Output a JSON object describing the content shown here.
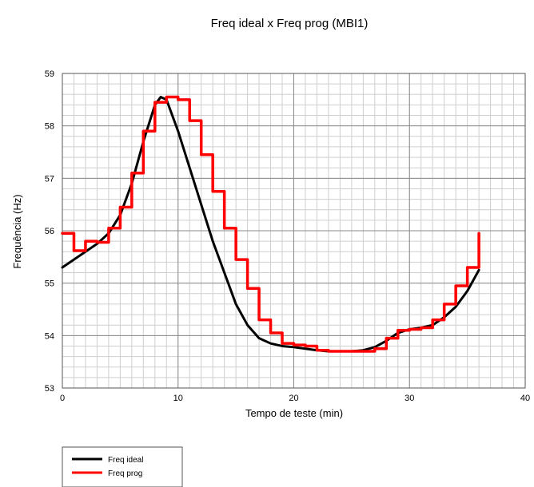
{
  "chart_data": {
    "type": "line",
    "title": "Freq ideal x Freq prog (MBI1)",
    "xlabel": "Tempo de teste (min)",
    "ylabel": "Frequência (Hz)",
    "xlim": [
      0,
      40
    ],
    "ylim": [
      53,
      59
    ],
    "xticks": [
      0,
      10,
      20,
      30,
      40
    ],
    "yticks": [
      53,
      54,
      55,
      56,
      57,
      58,
      59
    ],
    "ytick_labels": [
      "53",
      "54",
      "55",
      "56",
      "57",
      "58",
      "59"
    ],
    "x_minor_step": 1,
    "y_minor_step": 0.2,
    "grid": true,
    "legend_position": "bottom-left",
    "series": [
      {
        "name": "Freq ideal",
        "color": "#000000",
        "x": [
          0,
          1,
          2,
          3,
          4,
          5,
          6,
          7,
          8,
          8.5,
          9,
          10,
          11,
          12,
          13,
          14,
          15,
          16,
          17,
          18,
          19,
          20,
          21,
          22,
          23,
          24,
          25,
          26,
          27,
          28,
          29,
          30,
          31,
          32,
          33,
          34,
          35,
          36
        ],
        "y": [
          55.3,
          55.45,
          55.6,
          55.75,
          55.95,
          56.3,
          56.9,
          57.7,
          58.4,
          58.55,
          58.5,
          57.9,
          57.2,
          56.5,
          55.8,
          55.2,
          54.6,
          54.2,
          53.95,
          53.85,
          53.8,
          53.78,
          53.75,
          53.72,
          53.7,
          53.7,
          53.7,
          53.72,
          53.78,
          53.9,
          54.05,
          54.12,
          54.15,
          54.2,
          54.35,
          54.55,
          54.85,
          55.25
        ]
      },
      {
        "name": "Freq prog",
        "color": "#ff0000",
        "x": [
          0,
          1,
          1,
          2,
          2,
          3,
          3,
          4,
          4,
          5,
          5,
          6,
          6,
          7,
          7,
          8,
          8,
          9,
          9,
          10,
          10,
          11,
          11,
          12,
          12,
          13,
          13,
          14,
          14,
          15,
          15,
          16,
          16,
          17,
          17,
          18,
          18,
          19,
          19,
          20,
          20,
          21,
          21,
          22,
          22,
          23,
          23,
          24,
          24,
          25,
          25,
          26,
          26,
          27,
          27,
          28,
          28,
          29,
          29,
          30,
          30,
          31,
          31,
          32,
          32,
          33,
          33,
          34,
          34,
          35,
          35,
          36,
          36
        ],
        "y": [
          55.95,
          55.95,
          55.62,
          55.62,
          55.8,
          55.8,
          55.78,
          55.78,
          56.05,
          56.05,
          56.45,
          56.45,
          57.1,
          57.1,
          57.9,
          57.9,
          58.45,
          58.45,
          58.55,
          58.55,
          58.5,
          58.5,
          58.1,
          58.1,
          57.45,
          57.45,
          56.75,
          56.75,
          56.05,
          56.05,
          55.45,
          55.45,
          54.9,
          54.9,
          54.3,
          54.3,
          54.05,
          54.05,
          53.85,
          53.85,
          53.82,
          53.82,
          53.8,
          53.8,
          53.72,
          53.72,
          53.7,
          53.7,
          53.7,
          53.7,
          53.7,
          53.7,
          53.7,
          53.7,
          53.75,
          53.75,
          53.95,
          53.95,
          54.1,
          54.1,
          54.12,
          54.12,
          54.15,
          54.15,
          54.3,
          54.3,
          54.6,
          54.6,
          54.95,
          54.95,
          55.3,
          55.3,
          55.95
        ]
      }
    ]
  }
}
